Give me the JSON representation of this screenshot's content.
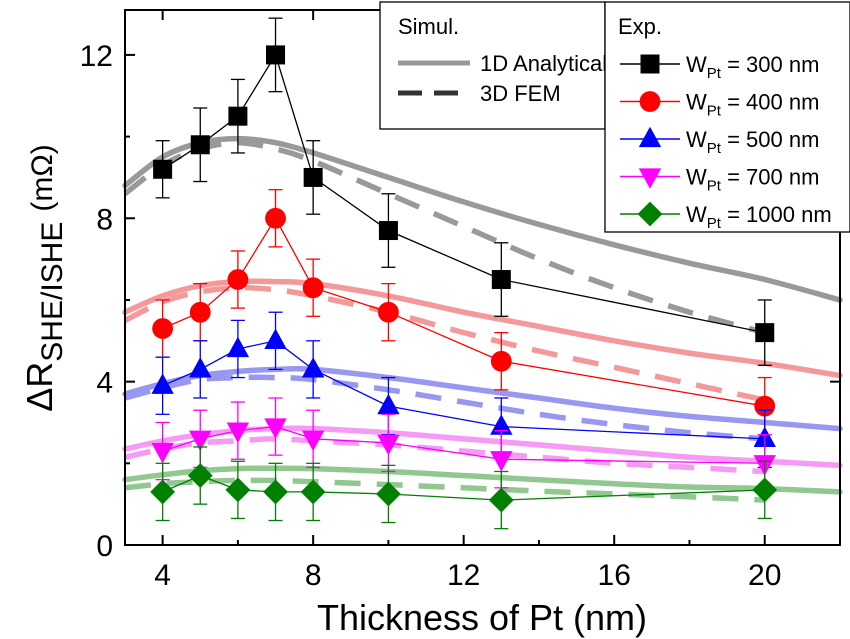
{
  "chart_data": {
    "type": "line",
    "title": "",
    "xlabel": "Thickness of Pt (nm)",
    "ylabel_main": "ΔR",
    "ylabel_sub": "SHE/ISHE",
    "ylabel_unit": "(mΩ)",
    "xlim": [
      3,
      22
    ],
    "ylim": [
      0,
      13.1
    ],
    "xticks": [
      4,
      8,
      12,
      16,
      20
    ],
    "yticks": [
      0,
      4,
      8,
      12
    ],
    "grid": false,
    "legend_placement": "top-right",
    "legend_sim": {
      "title": "Simul.",
      "items": [
        {
          "label": "1D Analytical",
          "style": "solid"
        },
        {
          "label": "3D FEM",
          "style": "dashed"
        }
      ]
    },
    "legend_exp": {
      "title": "Exp."
    },
    "series": [
      {
        "name": "W",
        "sub": "Pt",
        "suffix": "= 300 nm",
        "color": "#000000",
        "fit_color": "#999999",
        "marker": "square",
        "x": [
          4,
          5,
          6,
          7,
          8,
          10,
          13,
          20
        ],
        "y": [
          9.2,
          9.8,
          10.5,
          12.0,
          9.0,
          7.7,
          6.5,
          5.2
        ],
        "err": [
          0.7,
          0.9,
          0.9,
          0.9,
          0.9,
          0.9,
          0.9,
          0.8
        ],
        "analytical": [
          [
            3,
            8.8
          ],
          [
            4,
            9.5
          ],
          [
            5,
            9.85
          ],
          [
            6,
            9.95
          ],
          [
            7,
            9.85
          ],
          [
            8,
            9.6
          ],
          [
            10,
            9.0
          ],
          [
            12,
            8.4
          ],
          [
            14,
            7.85
          ],
          [
            16,
            7.35
          ],
          [
            18,
            6.9
          ],
          [
            20,
            6.5
          ],
          [
            22,
            6.0
          ]
        ],
        "fem": [
          [
            3,
            8.6
          ],
          [
            4,
            9.3
          ],
          [
            5,
            9.7
          ],
          [
            6,
            9.85
          ],
          [
            7,
            9.7
          ],
          [
            8,
            9.4
          ],
          [
            10,
            8.6
          ],
          [
            12,
            7.8
          ],
          [
            14,
            7.0
          ],
          [
            16,
            6.3
          ],
          [
            18,
            5.7
          ],
          [
            20,
            5.2
          ]
        ]
      },
      {
        "name": "W",
        "sub": "Pt",
        "suffix": "= 400 nm",
        "color": "#ff0000",
        "fit_color": "#f4999a",
        "marker": "circle",
        "x": [
          4,
          5,
          6,
          7,
          8,
          10,
          13,
          20
        ],
        "y": [
          5.3,
          5.7,
          6.5,
          8.0,
          6.3,
          5.7,
          4.5,
          3.4
        ],
        "err": [
          0.7,
          0.7,
          0.7,
          0.7,
          0.7,
          0.7,
          0.7,
          0.7
        ],
        "analytical": [
          [
            3,
            5.7
          ],
          [
            4,
            6.1
          ],
          [
            5,
            6.35
          ],
          [
            6,
            6.45
          ],
          [
            7,
            6.45
          ],
          [
            8,
            6.4
          ],
          [
            10,
            6.1
          ],
          [
            12,
            5.7
          ],
          [
            14,
            5.35
          ],
          [
            16,
            5.0
          ],
          [
            18,
            4.7
          ],
          [
            20,
            4.45
          ],
          [
            22,
            4.15
          ]
        ],
        "fem": [
          [
            3,
            5.5
          ],
          [
            4,
            5.95
          ],
          [
            5,
            6.2
          ],
          [
            6,
            6.3
          ],
          [
            7,
            6.25
          ],
          [
            8,
            6.1
          ],
          [
            10,
            5.7
          ],
          [
            12,
            5.2
          ],
          [
            14,
            4.75
          ],
          [
            16,
            4.35
          ],
          [
            18,
            3.95
          ],
          [
            20,
            3.55
          ]
        ]
      },
      {
        "name": "W",
        "sub": "Pt",
        "suffix": "= 500 nm",
        "color": "#0000ff",
        "fit_color": "#9898f0",
        "marker": "triangle-up",
        "x": [
          4,
          5,
          6,
          7,
          8,
          10,
          13,
          20
        ],
        "y": [
          3.9,
          4.3,
          4.8,
          5.0,
          4.3,
          3.4,
          2.9,
          2.6
        ],
        "err": [
          0.7,
          0.7,
          0.7,
          0.7,
          0.7,
          0.7,
          0.7,
          0.7
        ],
        "analytical": [
          [
            3,
            3.7
          ],
          [
            4,
            3.95
          ],
          [
            5,
            4.15
          ],
          [
            6,
            4.25
          ],
          [
            7,
            4.3
          ],
          [
            8,
            4.3
          ],
          [
            10,
            4.1
          ],
          [
            12,
            3.85
          ],
          [
            14,
            3.6
          ],
          [
            16,
            3.35
          ],
          [
            18,
            3.15
          ],
          [
            20,
            3.0
          ],
          [
            22,
            2.85
          ]
        ],
        "fem": [
          [
            3,
            3.6
          ],
          [
            4,
            3.85
          ],
          [
            5,
            4.05
          ],
          [
            6,
            4.1
          ],
          [
            7,
            4.1
          ],
          [
            8,
            4.05
          ],
          [
            10,
            3.8
          ],
          [
            12,
            3.5
          ],
          [
            14,
            3.2
          ],
          [
            16,
            2.95
          ],
          [
            18,
            2.75
          ],
          [
            20,
            2.6
          ]
        ]
      },
      {
        "name": "W",
        "sub": "Pt",
        "suffix": "= 700 nm",
        "color": "#ff00ff",
        "fit_color": "#f59af5",
        "marker": "triangle-down",
        "x": [
          4,
          5,
          6,
          7,
          8,
          10,
          13,
          20
        ],
        "y": [
          2.3,
          2.6,
          2.8,
          2.9,
          2.6,
          2.5,
          2.1,
          2.0
        ],
        "err": [
          0.7,
          0.7,
          0.7,
          0.7,
          0.7,
          0.7,
          0.7,
          0.7
        ],
        "analytical": [
          [
            3,
            2.35
          ],
          [
            4,
            2.55
          ],
          [
            5,
            2.7
          ],
          [
            6,
            2.8
          ],
          [
            7,
            2.85
          ],
          [
            8,
            2.85
          ],
          [
            10,
            2.75
          ],
          [
            12,
            2.6
          ],
          [
            14,
            2.45
          ],
          [
            16,
            2.3
          ],
          [
            18,
            2.15
          ],
          [
            20,
            2.05
          ],
          [
            22,
            1.95
          ]
        ],
        "fem": [
          [
            3,
            2.15
          ],
          [
            4,
            2.35
          ],
          [
            5,
            2.5
          ],
          [
            6,
            2.55
          ],
          [
            7,
            2.6
          ],
          [
            8,
            2.55
          ],
          [
            10,
            2.45
          ],
          [
            12,
            2.3
          ],
          [
            14,
            2.15
          ],
          [
            16,
            2.0
          ],
          [
            18,
            1.9
          ],
          [
            20,
            1.8
          ]
        ]
      },
      {
        "name": "W",
        "sub": "Pt",
        "suffix": "= 1000 nm",
        "color": "#008000",
        "fit_color": "#90c890",
        "marker": "diamond",
        "x": [
          4,
          5,
          6,
          7,
          8,
          10,
          13,
          20
        ],
        "y": [
          1.3,
          1.7,
          1.35,
          1.3,
          1.3,
          1.25,
          1.1,
          1.35
        ],
        "err": [
          0.7,
          0.7,
          0.7,
          0.7,
          0.7,
          0.7,
          0.7,
          0.7
        ],
        "analytical": [
          [
            3,
            1.6
          ],
          [
            4,
            1.72
          ],
          [
            5,
            1.82
          ],
          [
            6,
            1.87
          ],
          [
            7,
            1.88
          ],
          [
            8,
            1.87
          ],
          [
            10,
            1.8
          ],
          [
            12,
            1.7
          ],
          [
            14,
            1.6
          ],
          [
            16,
            1.5
          ],
          [
            18,
            1.42
          ],
          [
            20,
            1.38
          ],
          [
            22,
            1.3
          ]
        ],
        "fem": [
          [
            3,
            1.4
          ],
          [
            4,
            1.5
          ],
          [
            5,
            1.55
          ],
          [
            6,
            1.58
          ],
          [
            7,
            1.58
          ],
          [
            8,
            1.55
          ],
          [
            10,
            1.48
          ],
          [
            12,
            1.4
          ],
          [
            14,
            1.32
          ],
          [
            16,
            1.25
          ],
          [
            18,
            1.18
          ],
          [
            20,
            1.1
          ]
        ]
      }
    ]
  }
}
